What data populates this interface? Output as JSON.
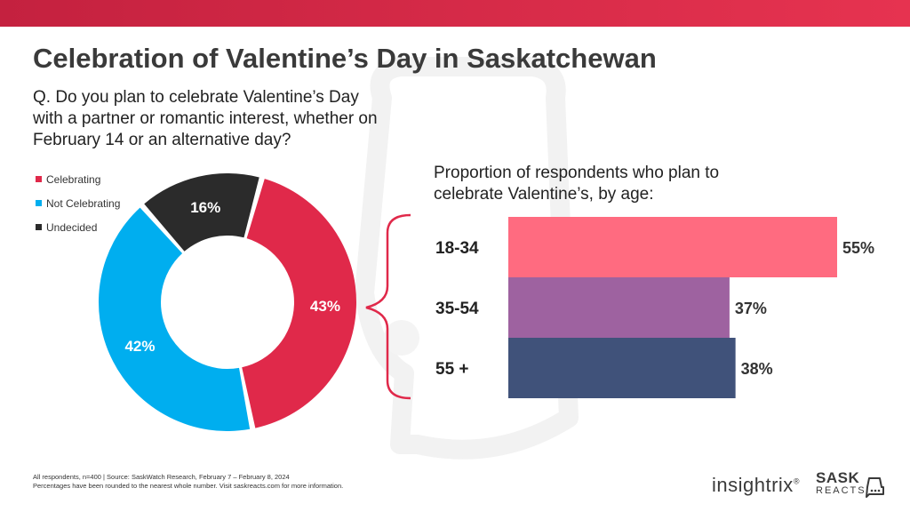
{
  "title": "Celebration of Valentine’s Day in Saskatchewan",
  "question": "Q. Do you plan to celebrate Valentine’s Day with a partner or romantic interest, whether on February 14 or an alternative day?",
  "footnote": {
    "line1": "All respondents,  n=400 | Source: SaskWatch Research, February  7 – February 8, 2024",
    "line2": "Percentages have been rounded  to the nearest whole number.  Visit saskreacts.com  for more information."
  },
  "brand": {
    "insightrix": "insightrix",
    "reg": "®",
    "sask": "SASK",
    "reacts": "REACTS"
  },
  "chart_data": [
    {
      "type": "pie",
      "variant": "donut",
      "legend_position": "top-left",
      "categories": [
        "Celebrating",
        "Not Celebrating",
        "Undecided"
      ],
      "values": [
        43,
        42,
        16
      ],
      "labels": [
        "43%",
        "42%",
        "16%"
      ],
      "colors": [
        "#e0294a",
        "#00aeef",
        "#2b2b2b"
      ]
    },
    {
      "type": "bar",
      "orientation": "horizontal",
      "title": "Proportion of respondents who plan to celebrate Valentine’s, by age:",
      "categories": [
        "18-34",
        "35-54",
        "55 +"
      ],
      "values": [
        55,
        37,
        38
      ],
      "labels": [
        "55%",
        "37%",
        "38%"
      ],
      "colors": [
        "#ff6b80",
        "#9e62a0",
        "#40527a"
      ]
    }
  ]
}
